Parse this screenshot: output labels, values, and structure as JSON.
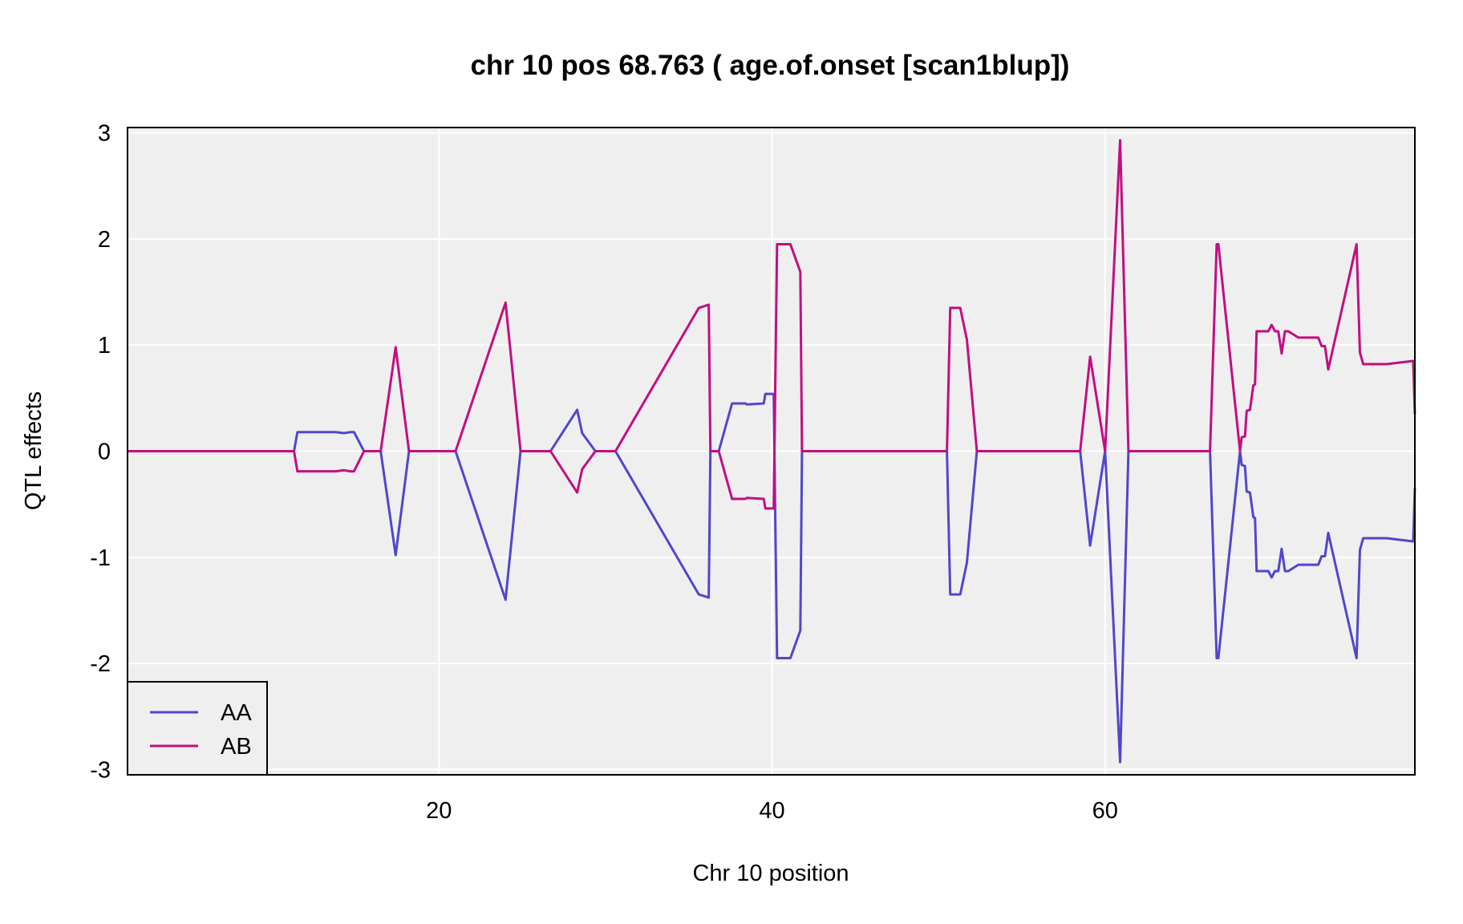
{
  "chart_data": {
    "type": "line",
    "title": "chr 10 pos 68.763 ( age.of.onset  [scan1blup])",
    "xlabel": "Chr 10 position",
    "ylabel": "QTL effects",
    "xlim": [
      1.3,
      78.6
    ],
    "ylim": [
      -3.05,
      3.05
    ],
    "xticks": [
      20,
      40,
      60
    ],
    "yticks": [
      -3,
      -2,
      -1,
      0,
      1,
      2,
      3
    ],
    "grid": true,
    "legend_position": "bottom-left",
    "colors": {
      "AA": "#5146cc",
      "AB": "#c20e82",
      "panel": "#efefef",
      "grid": "#ffffff"
    },
    "series": [
      {
        "name": "AA",
        "color": "#5146cc",
        "points": [
          [
            1.3,
            0
          ],
          [
            11.3,
            0
          ],
          [
            11.5,
            0.18
          ],
          [
            13.8,
            0.18
          ],
          [
            14.3,
            0.17
          ],
          [
            14.7,
            0.18
          ],
          [
            14.9,
            0.18
          ],
          [
            15.5,
            0
          ],
          [
            16.5,
            0
          ],
          [
            17.4,
            -0.98
          ],
          [
            18.2,
            0
          ],
          [
            21.0,
            0
          ],
          [
            24.0,
            -1.4
          ],
          [
            24.9,
            0
          ],
          [
            26.7,
            0
          ],
          [
            28.3,
            0.39
          ],
          [
            28.6,
            0.17
          ],
          [
            29.4,
            0
          ],
          [
            30.6,
            0
          ],
          [
            35.6,
            -1.35
          ],
          [
            36.2,
            -1.38
          ],
          [
            36.3,
            0
          ],
          [
            36.8,
            0
          ],
          [
            37.6,
            0.45
          ],
          [
            38.4,
            0.45
          ],
          [
            38.5,
            0.44
          ],
          [
            39.5,
            0.45
          ],
          [
            39.6,
            0.54
          ],
          [
            40.1,
            0.54
          ],
          [
            40.3,
            -1.95
          ],
          [
            41.1,
            -1.95
          ],
          [
            41.7,
            -1.69
          ],
          [
            41.8,
            0
          ],
          [
            50.5,
            0
          ],
          [
            50.7,
            -1.35
          ],
          [
            51.3,
            -1.35
          ],
          [
            51.7,
            -1.05
          ],
          [
            52.3,
            0
          ],
          [
            58.5,
            0
          ],
          [
            59.1,
            -0.89
          ],
          [
            60.0,
            0
          ],
          [
            60.9,
            -2.93
          ],
          [
            61.4,
            0
          ],
          [
            66.3,
            0
          ],
          [
            66.7,
            -1.95
          ],
          [
            66.8,
            -1.95
          ],
          [
            68.1,
            0
          ],
          [
            68.2,
            -0.13
          ],
          [
            68.4,
            -0.14
          ],
          [
            68.5,
            -0.38
          ],
          [
            68.7,
            -0.39
          ],
          [
            68.9,
            -0.62
          ],
          [
            69.0,
            -0.63
          ],
          [
            69.1,
            -1.13
          ],
          [
            69.8,
            -1.13
          ],
          [
            70.0,
            -1.19
          ],
          [
            70.2,
            -1.13
          ],
          [
            70.4,
            -1.13
          ],
          [
            70.6,
            -0.92
          ],
          [
            70.8,
            -1.13
          ],
          [
            71.0,
            -1.13
          ],
          [
            71.6,
            -1.07
          ],
          [
            72.8,
            -1.07
          ],
          [
            73.0,
            -0.99
          ],
          [
            73.2,
            -0.99
          ],
          [
            73.4,
            -0.77
          ],
          [
            75.1,
            -1.95
          ],
          [
            75.3,
            -0.93
          ],
          [
            75.5,
            -0.82
          ],
          [
            76.9,
            -0.82
          ],
          [
            78.5,
            -0.85
          ],
          [
            78.6,
            -0.35
          ]
        ]
      },
      {
        "name": "AB",
        "color": "#c20e82",
        "points": [
          [
            1.3,
            0
          ],
          [
            11.3,
            0
          ],
          [
            11.5,
            -0.19
          ],
          [
            13.8,
            -0.19
          ],
          [
            14.3,
            -0.18
          ],
          [
            14.7,
            -0.19
          ],
          [
            14.9,
            -0.19
          ],
          [
            15.5,
            0
          ],
          [
            16.5,
            0
          ],
          [
            17.4,
            0.98
          ],
          [
            18.2,
            0
          ],
          [
            21.0,
            0
          ],
          [
            24.0,
            1.4
          ],
          [
            24.9,
            0
          ],
          [
            26.7,
            0
          ],
          [
            28.3,
            -0.39
          ],
          [
            28.6,
            -0.17
          ],
          [
            29.4,
            0
          ],
          [
            30.6,
            0
          ],
          [
            35.6,
            1.35
          ],
          [
            36.2,
            1.38
          ],
          [
            36.3,
            0
          ],
          [
            36.8,
            0
          ],
          [
            37.6,
            -0.45
          ],
          [
            38.4,
            -0.45
          ],
          [
            38.5,
            -0.44
          ],
          [
            39.5,
            -0.45
          ],
          [
            39.6,
            -0.54
          ],
          [
            40.1,
            -0.54
          ],
          [
            40.3,
            1.95
          ],
          [
            41.1,
            1.95
          ],
          [
            41.7,
            1.69
          ],
          [
            41.8,
            0
          ],
          [
            50.5,
            0
          ],
          [
            50.7,
            1.35
          ],
          [
            51.3,
            1.35
          ],
          [
            51.7,
            1.05
          ],
          [
            52.3,
            0
          ],
          [
            58.5,
            0
          ],
          [
            59.1,
            0.89
          ],
          [
            60.0,
            0
          ],
          [
            60.9,
            2.93
          ],
          [
            61.4,
            0
          ],
          [
            66.3,
            0
          ],
          [
            66.7,
            1.95
          ],
          [
            66.8,
            1.95
          ],
          [
            68.1,
            0
          ],
          [
            68.2,
            0.13
          ],
          [
            68.4,
            0.14
          ],
          [
            68.5,
            0.38
          ],
          [
            68.7,
            0.39
          ],
          [
            68.9,
            0.62
          ],
          [
            69.0,
            0.63
          ],
          [
            69.1,
            1.13
          ],
          [
            69.8,
            1.13
          ],
          [
            70.0,
            1.19
          ],
          [
            70.2,
            1.13
          ],
          [
            70.4,
            1.13
          ],
          [
            70.6,
            0.92
          ],
          [
            70.8,
            1.13
          ],
          [
            71.0,
            1.13
          ],
          [
            71.6,
            1.07
          ],
          [
            72.8,
            1.07
          ],
          [
            73.0,
            0.99
          ],
          [
            73.2,
            0.99
          ],
          [
            73.4,
            0.77
          ],
          [
            75.1,
            1.95
          ],
          [
            75.3,
            0.93
          ],
          [
            75.5,
            0.82
          ],
          [
            76.9,
            0.82
          ],
          [
            78.5,
            0.85
          ],
          [
            78.6,
            0.35
          ]
        ]
      }
    ]
  }
}
